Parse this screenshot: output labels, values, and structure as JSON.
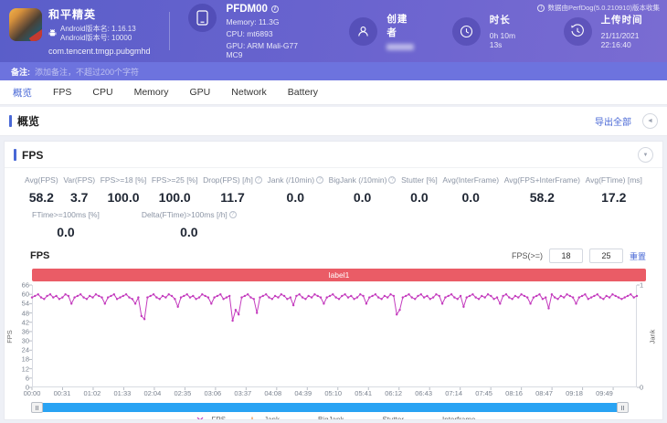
{
  "header": {
    "app": {
      "name": "和平精英",
      "android_version_name": "Android版本名: 1.16.13",
      "android_version_code": "Android版本号: 10000",
      "package": "com.tencent.tmgp.pubgmhd"
    },
    "device": {
      "model": "PFDM00",
      "memory": "Memory: 11.3G",
      "cpu": "CPU: mt6893",
      "gpu": "GPU: ARM Mali-G77 MC9"
    },
    "creator_label": "创建者",
    "duration_label": "时长",
    "duration_value": "0h 10m 13s",
    "upload_label": "上传时间",
    "upload_value": "21/11/2021 22:16:40",
    "collect_info": "数据由PerfDog(5.0.210910)版本收集"
  },
  "note_bar": {
    "label": "备注:",
    "placeholder": "添加备注，不超过200个字符"
  },
  "tabs": [
    "概览",
    "FPS",
    "CPU",
    "Memory",
    "GPU",
    "Network",
    "Battery"
  ],
  "active_tab": "概览",
  "overview": {
    "title": "概览",
    "export_label": "导出全部",
    "collapse_icon": "◄"
  },
  "fps_panel": {
    "title": "FPS",
    "collapse_icon": "▼",
    "stats_row1": [
      {
        "label": "Avg(FPS)",
        "value": "58.2",
        "help": false
      },
      {
        "label": "Var(FPS)",
        "value": "3.7",
        "help": false
      },
      {
        "label": "FPS>=18 [%]",
        "value": "100.0",
        "help": false
      },
      {
        "label": "FPS>=25 [%]",
        "value": "100.0",
        "help": false
      },
      {
        "label": "Drop(FPS) [/h]",
        "value": "11.7",
        "help": true
      },
      {
        "label": "Jank (/10min)",
        "value": "0.0",
        "help": true
      },
      {
        "label": "BigJank (/10min)",
        "value": "0.0",
        "help": true
      },
      {
        "label": "Stutter [%]",
        "value": "0.0",
        "help": false
      },
      {
        "label": "Avg(InterFrame)",
        "value": "0.0",
        "help": false
      },
      {
        "label": "Avg(FPS+InterFrame)",
        "value": "58.2",
        "help": false
      },
      {
        "label": "Avg(FTime) [ms]",
        "value": "17.2",
        "help": false
      }
    ],
    "stats_row2": [
      {
        "label": "FTime>=100ms [%]",
        "value": "0.0",
        "help": false
      },
      {
        "label": "Delta(FTime)>100ms [/h]",
        "value": "0.0",
        "help": true
      }
    ],
    "chart_title": "FPS",
    "fps_filter": {
      "label": "FPS(>=)",
      "value1": "18",
      "value2": "25",
      "reset_label": "重置"
    },
    "label_bar": "label1"
  },
  "chart_data": {
    "type": "line",
    "title": "label1",
    "ylabel_left": "FPS",
    "ylabel_right": "Jank",
    "ylim_left": [
      0,
      66
    ],
    "yticks_left": [
      0,
      6,
      12,
      18,
      24,
      30,
      36,
      42,
      48,
      54,
      60,
      66
    ],
    "ylim_right": [
      0,
      1
    ],
    "yticks_right": [
      0,
      1
    ],
    "x_max_seconds": 613,
    "xticks": [
      "00:00",
      "00:31",
      "01:02",
      "01:33",
      "02:04",
      "02:35",
      "03:06",
      "03:37",
      "04:08",
      "04:39",
      "05:10",
      "05:41",
      "06:12",
      "06:43",
      "07:14",
      "07:45",
      "08:16",
      "08:47",
      "09:18",
      "09:49"
    ],
    "grid": false,
    "legend_position": "bottom",
    "legend": [
      {
        "name": "FPS",
        "color": "#c43cbe",
        "marker": "x"
      },
      {
        "name": "Jank",
        "color": "#f08a3c",
        "marker": "plus"
      },
      {
        "name": "BigJank",
        "color": "#e84b4b",
        "marker": "line"
      },
      {
        "name": "Stutter",
        "color": "#3f7de0",
        "marker": "line"
      },
      {
        "name": "Interframe",
        "color": "#3fc8ea",
        "marker": "line"
      }
    ],
    "series": [
      {
        "name": "FPS",
        "color": "#c43cbe",
        "values": [
          58,
          59,
          60,
          58,
          57,
          59,
          60,
          58,
          59,
          57,
          58,
          60,
          59,
          54,
          58,
          59,
          60,
          58,
          57,
          59,
          58,
          60,
          59,
          58,
          54,
          58,
          59,
          60,
          57,
          58,
          59,
          60,
          58,
          57,
          54,
          58,
          46,
          44,
          58,
          59,
          60,
          58,
          57,
          59,
          58,
          60,
          59,
          57,
          52,
          58,
          59,
          60,
          58,
          59,
          57,
          58,
          60,
          59,
          58,
          54,
          58,
          59,
          60,
          57,
          58,
          59,
          43,
          50,
          47,
          58,
          59,
          60,
          58,
          57,
          48,
          58,
          59,
          60,
          58,
          57,
          59,
          58,
          60,
          59,
          57,
          58,
          53,
          59,
          60,
          58,
          57,
          59,
          58,
          60,
          59,
          58,
          54,
          58,
          59,
          60,
          58,
          57,
          59,
          60,
          58,
          59,
          57,
          58,
          60,
          59,
          54,
          58,
          59,
          60,
          58,
          57,
          59,
          58,
          60,
          59,
          47,
          50,
          58,
          59,
          60,
          58,
          57,
          59,
          60,
          58,
          59,
          57,
          58,
          60,
          59,
          54,
          58,
          59,
          60,
          58,
          57,
          59,
          52,
          58,
          59,
          60,
          58,
          57,
          59,
          58,
          60,
          59,
          57,
          58,
          54,
          59,
          60,
          58,
          57,
          59,
          58,
          60,
          59,
          58,
          54,
          58,
          59,
          60,
          57,
          58,
          51,
          60,
          58,
          57,
          59,
          58,
          60,
          59,
          58,
          54,
          58,
          59,
          60,
          57,
          58,
          59,
          60,
          58,
          57,
          59,
          58,
          60,
          59,
          58,
          57,
          58,
          59,
          60,
          58,
          59
        ]
      }
    ]
  }
}
